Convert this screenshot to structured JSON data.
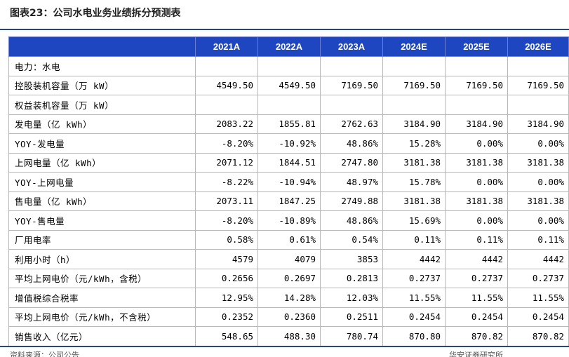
{
  "title": "图表23：公司水电业务业绩拆分预测表",
  "columns": [
    "2021A",
    "2022A",
    "2023A",
    "2024E",
    "2025E",
    "2026E"
  ],
  "rows": [
    {
      "label": "电力：水电",
      "values": [
        "",
        "",
        "",
        "",
        "",
        ""
      ]
    },
    {
      "label": "控股装机容量（万 kW）",
      "values": [
        "4549.50",
        "4549.50",
        "7169.50",
        "7169.50",
        "7169.50",
        "7169.50"
      ]
    },
    {
      "label": "权益装机容量（万 kW）",
      "values": [
        "",
        "",
        "",
        "",
        "",
        ""
      ]
    },
    {
      "label": "发电量（亿 kWh）",
      "values": [
        "2083.22",
        "1855.81",
        "2762.63",
        "3184.90",
        "3184.90",
        "3184.90"
      ]
    },
    {
      "label": "YOY-发电量",
      "values": [
        "-8.20%",
        "-10.92%",
        "48.86%",
        "15.28%",
        "0.00%",
        "0.00%"
      ]
    },
    {
      "label": "上网电量（亿 kWh）",
      "values": [
        "2071.12",
        "1844.51",
        "2747.80",
        "3181.38",
        "3181.38",
        "3181.38"
      ]
    },
    {
      "label": "YOY-上网电量",
      "values": [
        "-8.22%",
        "-10.94%",
        "48.97%",
        "15.78%",
        "0.00%",
        "0.00%"
      ]
    },
    {
      "label": "售电量（亿 kWh）",
      "values": [
        "2073.11",
        "1847.25",
        "2749.88",
        "3181.38",
        "3181.38",
        "3181.38"
      ]
    },
    {
      "label": "YOY-售电量",
      "values": [
        "-8.20%",
        "-10.89%",
        "48.86%",
        "15.69%",
        "0.00%",
        "0.00%"
      ]
    },
    {
      "label": "厂用电率",
      "values": [
        "0.58%",
        "0.61%",
        "0.54%",
        "0.11%",
        "0.11%",
        "0.11%"
      ]
    },
    {
      "label": "利用小时（h）",
      "values": [
        "4579",
        "4079",
        "3853",
        "4442",
        "4442",
        "4442"
      ]
    },
    {
      "label": "平均上网电价（元/kWh，含税）",
      "values": [
        "0.2656",
        "0.2697",
        "0.2813",
        "0.2737",
        "0.2737",
        "0.2737"
      ]
    },
    {
      "label": "增值税综合税率",
      "values": [
        "12.95%",
        "14.28%",
        "12.03%",
        "11.55%",
        "11.55%",
        "11.55%"
      ]
    },
    {
      "label": "平均上网电价（元/kWh，不含税）",
      "values": [
        "0.2352",
        "0.2360",
        "0.2511",
        "0.2454",
        "0.2454",
        "0.2454"
      ]
    },
    {
      "label": "销售收入（亿元）",
      "values": [
        "548.65",
        "488.30",
        "780.74",
        "870.80",
        "870.82",
        "870.82"
      ]
    }
  ],
  "footer": {
    "left": "资料来源：公司公告",
    "right": "华安证券研究所"
  }
}
